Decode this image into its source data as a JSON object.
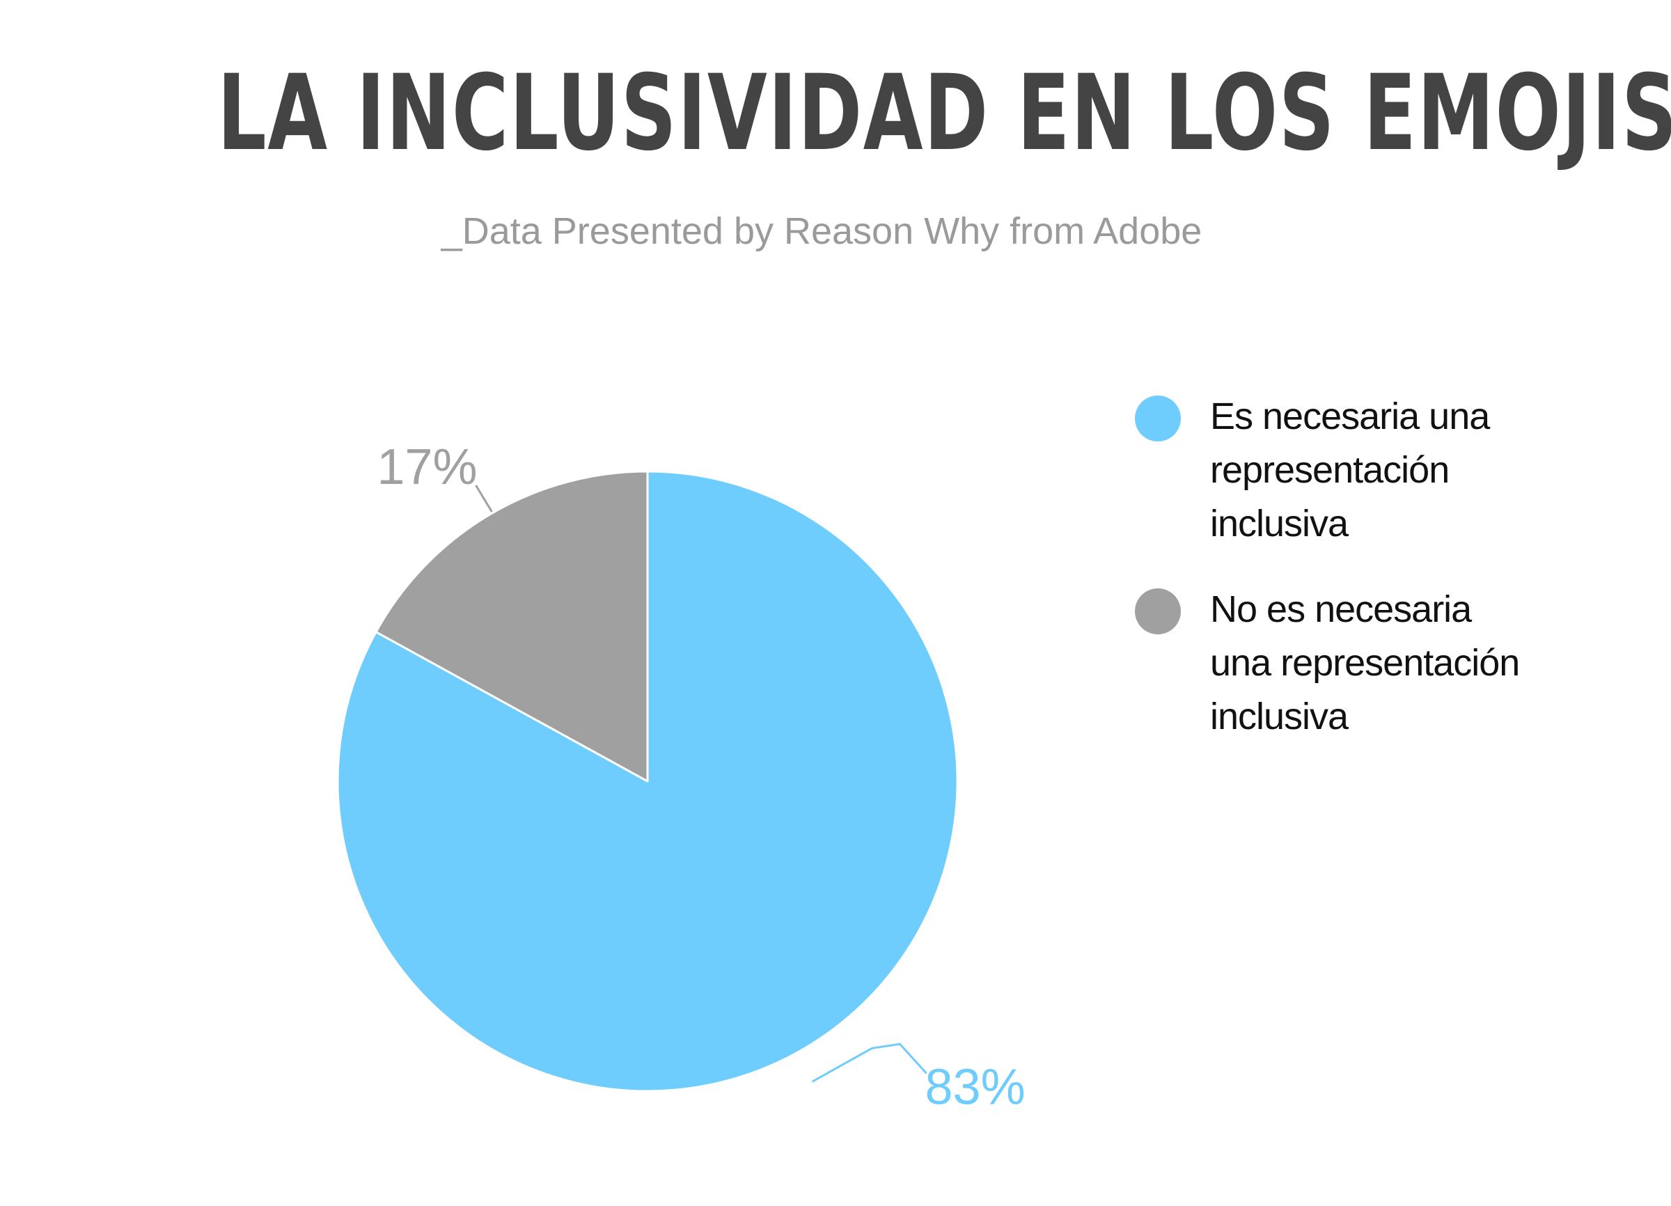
{
  "chart_data": {
    "type": "pie",
    "title": "LA INCLUSIVIDAD EN LOS EMOJIS",
    "subtitle": "_Data Presented by Reason Why from Adobe",
    "categories": [
      "Es necesaria una representación inclusiva",
      "No es necesaria una representación inclusiva"
    ],
    "values": [
      83,
      17
    ],
    "value_labels": [
      "83%",
      "17%"
    ],
    "colors": [
      "#6ecdfc",
      "#a0a0a0"
    ],
    "legend": {
      "placement": "right",
      "entries": [
        {
          "label": "Es necesaria una representación inclusiva",
          "color": "#6ecdfc"
        },
        {
          "label": "No es necesaria una representación inclusiva",
          "color": "#a0a0a0"
        }
      ]
    }
  }
}
